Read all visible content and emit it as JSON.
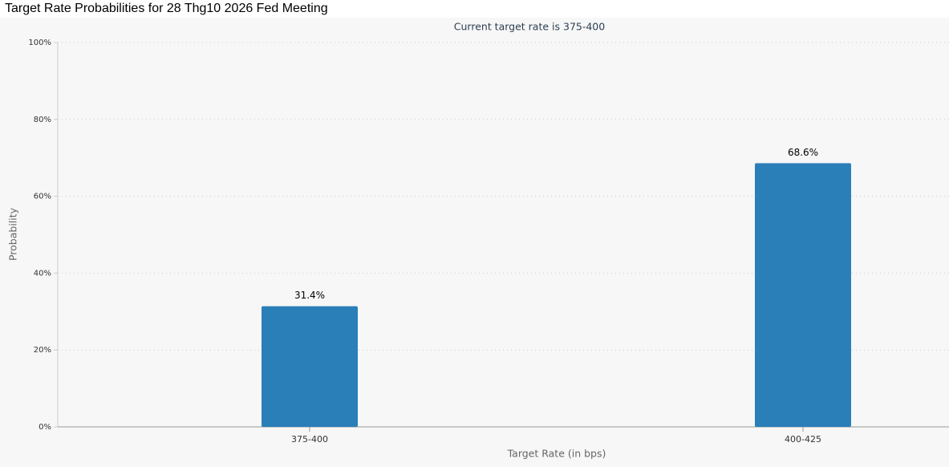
{
  "chart_data": {
    "type": "bar",
    "title": "Target Rate Probabilities for 28 Thg10 2026 Fed Meeting",
    "subtitle": "Current target rate is 375-400",
    "x_label": "Target Rate (in bps)",
    "y_label": "Probability",
    "categories": [
      "375-400",
      "400-425"
    ],
    "values": [
      31.4,
      68.6
    ],
    "value_labels": [
      "31.4%",
      "68.6%"
    ],
    "color": "#2a7fb8",
    "ylim": [
      0,
      100
    ],
    "yticks": [
      {
        "value": 0,
        "label": "0%"
      },
      {
        "value": 20,
        "label": "20%"
      },
      {
        "value": 40,
        "label": "40%"
      },
      {
        "value": 60,
        "label": "60%"
      },
      {
        "value": 80,
        "label": "80%"
      },
      {
        "value": 100,
        "label": "100%"
      }
    ],
    "grid": true
  }
}
